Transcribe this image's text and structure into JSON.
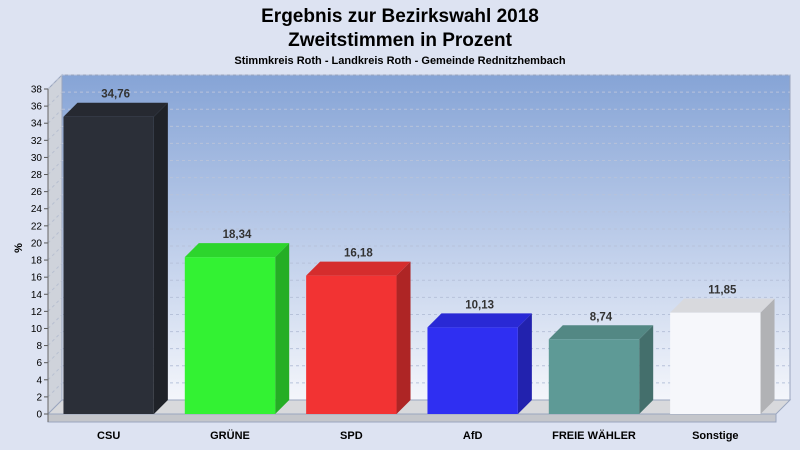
{
  "header": {
    "title_line1": "Ergebnis zur Bezirkswahl 2018",
    "title_line2": "Zweitstimmen in Prozent",
    "subtitle": "Stimmkreis Roth - Landkreis Roth - Gemeinde Rednitzhembach"
  },
  "chart_data": {
    "type": "bar",
    "title": "Ergebnis zur Bezirkswahl 2018 Zweitstimmen in Prozent",
    "subtitle": "Stimmkreis Roth - Landkreis Roth - Gemeinde Rednitzhembach",
    "ylabel": "%",
    "xlabel": "",
    "categories": [
      "CSU",
      "GRÜNE",
      "SPD",
      "AfD",
      "FREIE WÄHLER",
      "Sonstige"
    ],
    "values": [
      34.76,
      18.34,
      16.18,
      10.13,
      8.74,
      11.85
    ],
    "value_labels": [
      "34,76",
      "18,34",
      "16,18",
      "10,13",
      "8,74",
      "11,85"
    ],
    "colors": [
      "#2b2f38",
      "#33f233",
      "#f23333",
      "#2f2ff2",
      "#5e9a96",
      "#f6f7fb"
    ],
    "ylim": [
      0,
      38
    ],
    "yticks": [
      0,
      2,
      4,
      6,
      8,
      10,
      12,
      14,
      16,
      18,
      20,
      22,
      24,
      26,
      28,
      30,
      32,
      34,
      36,
      38
    ],
    "grid": true,
    "style": "3d"
  }
}
